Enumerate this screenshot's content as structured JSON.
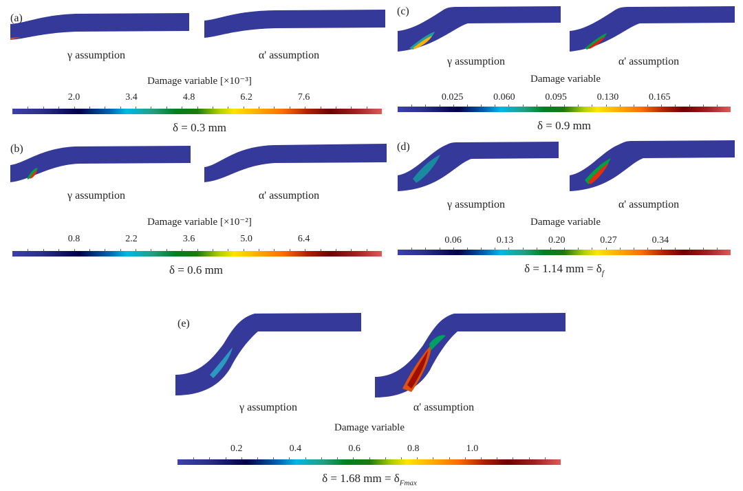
{
  "figure": {
    "panels": [
      {
        "id": "a",
        "label": "(a)",
        "gamma_label": "γ assumption",
        "alpha_label": "α' assumption",
        "colorbar_title": "Damage variable [×10⁻³]",
        "ticks": [
          "2.0",
          "3.4",
          "4.8",
          "6.2",
          "7.6"
        ],
        "tick_values": [
          2.0,
          3.4,
          4.8,
          6.2,
          7.6
        ],
        "scale_range": [
          0.5,
          9.5
        ],
        "delta_text": "δ = 0.3 mm"
      },
      {
        "id": "b",
        "label": "(b)",
        "gamma_label": "γ assumption",
        "alpha_label": "α' assumption",
        "colorbar_title": "Damage variable [×10⁻²]",
        "ticks": [
          "0.8",
          "2.2",
          "3.6",
          "5.0",
          "6.4"
        ],
        "tick_values": [
          0.8,
          2.2,
          3.6,
          5.0,
          6.4
        ],
        "scale_range": [
          -0.7,
          8.3
        ],
        "delta_text": "δ = 0.6 mm"
      },
      {
        "id": "c",
        "label": "(c)",
        "gamma_label": "γ assumption",
        "alpha_label": "α' assumption",
        "colorbar_title": "Damage variable",
        "ticks": [
          "0.025",
          "0.060",
          "0.095",
          "0.130",
          "0.165"
        ],
        "tick_values": [
          0.025,
          0.06,
          0.095,
          0.13,
          0.165
        ],
        "scale_range": [
          -0.012,
          0.213
        ],
        "delta_text": "δ = 0.9 mm"
      },
      {
        "id": "d",
        "label": "(d)",
        "gamma_label": "γ assumption",
        "alpha_label": "α' assumption",
        "colorbar_title": "Damage variable",
        "ticks": [
          "0.06",
          "0.13",
          "0.20",
          "0.27",
          "0.34"
        ],
        "tick_values": [
          0.06,
          0.13,
          0.2,
          0.27,
          0.34
        ],
        "scale_range": [
          -0.015,
          0.435
        ],
        "delta_text": "δ = 1.14 mm = δ",
        "delta_sub": "f"
      },
      {
        "id": "e",
        "label": "(e)",
        "gamma_label": "γ assumption",
        "alpha_label": "α' assumption",
        "colorbar_title": "Damage variable",
        "ticks": [
          "0.2",
          "0.4",
          "0.6",
          "0.8",
          "1.0"
        ],
        "tick_values": [
          0.2,
          0.4,
          0.6,
          0.8,
          1.0
        ],
        "scale_range": [
          0.0,
          1.3
        ],
        "delta_text": "δ = 1.68 mm = δ",
        "delta_sub": "Fmax"
      }
    ],
    "colors": {
      "base": "#35399a",
      "colormap": [
        "#3b40ad",
        "#000048",
        "#00b8e6",
        "#008020",
        "#ffe400",
        "#ff7000",
        "#700000",
        "#e05858"
      ]
    }
  }
}
